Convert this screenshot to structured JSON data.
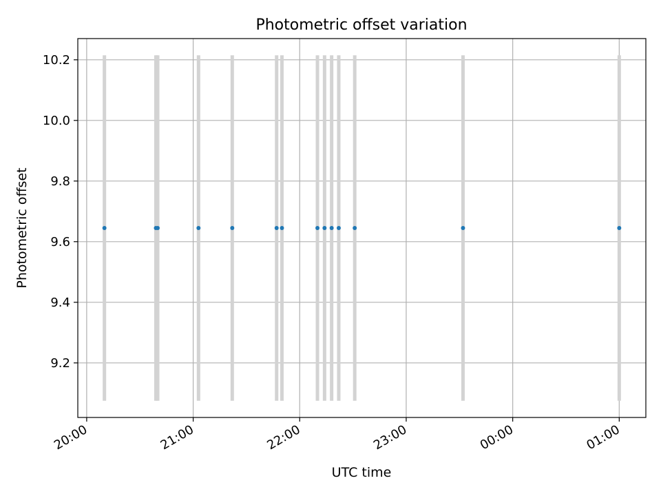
{
  "chart_data": {
    "type": "scatter",
    "title": "Photometric offset variation",
    "xlabel": "UTC time",
    "ylabel": "Photometric offset",
    "xlim": [
      "19:55",
      "01:15"
    ],
    "ylim": [
      9.02,
      10.27
    ],
    "grid": true,
    "x_ticks": [
      {
        "t": "20:00",
        "label": "20:00"
      },
      {
        "t": "21:00",
        "label": "21:00"
      },
      {
        "t": "22:00",
        "label": "22:00"
      },
      {
        "t": "23:00",
        "label": "23:00"
      },
      {
        "t": "00:00",
        "label": "00:00"
      },
      {
        "t": "01:00",
        "label": "01:00"
      }
    ],
    "y_ticks": [
      9.2,
      9.4,
      9.6,
      9.8,
      10.0,
      10.2
    ],
    "points": [
      {
        "x": "20:10",
        "y": 9.645
      },
      {
        "x": "20:39",
        "y": 9.645
      },
      {
        "x": "20:40",
        "y": 9.645
      },
      {
        "x": "21:03",
        "y": 9.645
      },
      {
        "x": "21:22",
        "y": 9.645
      },
      {
        "x": "21:47",
        "y": 9.645
      },
      {
        "x": "21:50",
        "y": 9.645
      },
      {
        "x": "22:10",
        "y": 9.645
      },
      {
        "x": "22:14",
        "y": 9.645
      },
      {
        "x": "22:18",
        "y": 9.645
      },
      {
        "x": "22:22",
        "y": 9.645
      },
      {
        "x": "22:31",
        "y": 9.645
      },
      {
        "x": "23:32",
        "y": 9.645
      },
      {
        "x": "01:00",
        "y": 9.645
      }
    ],
    "error_bar": {
      "low": 9.075,
      "high": 10.215
    },
    "colors": {
      "marker": "#1f77b4",
      "error_bar": "#d3d3d3",
      "grid": "#b0b0b0"
    }
  }
}
